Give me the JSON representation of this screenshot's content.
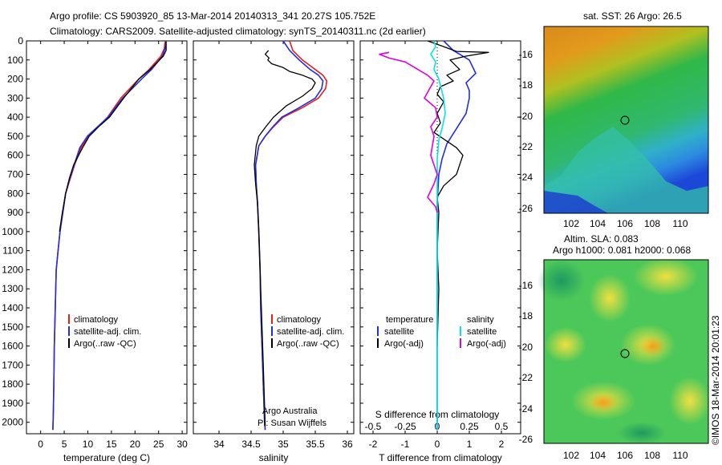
{
  "header": {
    "title_line1": "Argo profile: CS 5903920_85 13-Mar-2014 20140313_341 20.27S 105.752E",
    "title_line2": "Climatology: CARS2009. Satellite-adjusted climatology: synTS_20140311.nc (2d earlier)"
  },
  "colors": {
    "climatology": "#e8201a",
    "satellite": "#1f2ee8",
    "argo": "#000000",
    "satellite_salinity": "#00e5e5",
    "argo_salinity": "#e000e0"
  },
  "chart_data": [
    {
      "type": "line",
      "name": "temperature-profile",
      "xlabel": "temperature (deg C)",
      "xlim": [
        -3,
        31
      ],
      "xticks": [
        0,
        5,
        10,
        15,
        20,
        25,
        30
      ],
      "ylim": [
        2060,
        0
      ],
      "yticks": [
        0,
        100,
        200,
        300,
        400,
        500,
        600,
        700,
        800,
        900,
        1000,
        1100,
        1200,
        1300,
        1400,
        1500,
        1600,
        1700,
        1800,
        1900,
        2000
      ],
      "legend": [
        "climatology",
        "satellite-adj. clim.",
        "Argo(..raw -QC)"
      ],
      "series": [
        {
          "name": "climatology",
          "color": "climatology",
          "x": [
            26.4,
            26.2,
            25.5,
            23.0,
            20.8,
            17.0,
            14.2,
            12.2,
            10.2,
            8.6,
            7.2,
            6.3,
            5.3,
            4.7,
            4.1,
            3.7,
            3.3,
            3.1,
            2.9,
            2.8,
            2.7,
            2.6
          ],
          "y": [
            0,
            40,
            80,
            150,
            200,
            300,
            400,
            450,
            500,
            560,
            650,
            720,
            800,
            900,
            1000,
            1100,
            1200,
            1400,
            1600,
            1800,
            1950,
            2040
          ]
        },
        {
          "name": "satellite",
          "color": "satellite",
          "x": [
            26.6,
            26.4,
            25.8,
            23.5,
            21.4,
            17.4,
            14.3,
            12.1,
            9.9,
            8.3,
            7.1,
            6.2,
            5.3,
            4.7,
            4.1,
            3.7,
            3.3,
            3.1,
            2.9,
            2.8,
            2.7,
            2.6
          ],
          "y": [
            0,
            40,
            80,
            150,
            200,
            300,
            400,
            450,
            500,
            560,
            650,
            720,
            800,
            900,
            1000,
            1100,
            1200,
            1400,
            1600,
            1800,
            1950,
            2040
          ]
        },
        {
          "name": "argo",
          "color": "argo",
          "x": [
            26.6,
            26.6,
            26.0,
            23.2,
            20.8,
            17.6,
            14.6,
            12.3,
            10.3,
            8.9,
            7.0,
            6.1,
            5.3,
            4.6,
            4.0
          ],
          "y": [
            5,
            50,
            80,
            150,
            200,
            300,
            400,
            450,
            500,
            560,
            650,
            720,
            800,
            900,
            1000
          ]
        }
      ]
    },
    {
      "type": "line",
      "name": "salinity-profile",
      "xlabel": "salinity",
      "xlim": [
        33.6,
        36.1
      ],
      "xticks": [
        34,
        34.5,
        35,
        35.5,
        36
      ],
      "ylim": [
        2060,
        0
      ],
      "legend": [
        "climatology",
        "satellite-adj. clim.",
        "Argo(..raw -QC)"
      ],
      "annotations": [
        "Argo Australia",
        "PI: Susan Wijffels"
      ],
      "series": [
        {
          "name": "climatology",
          "color": "climatology",
          "x": [
            35.1,
            35.15,
            35.3,
            35.5,
            35.62,
            35.68,
            35.66,
            35.55,
            35.3,
            35.0,
            34.85,
            34.72,
            34.62,
            34.57,
            34.58,
            34.6,
            34.62,
            34.64,
            34.65,
            34.67,
            34.69,
            34.71,
            34.72
          ],
          "y": [
            0,
            50,
            100,
            150,
            180,
            210,
            250,
            300,
            350,
            400,
            450,
            500,
            550,
            650,
            750,
            850,
            1000,
            1200,
            1400,
            1600,
            1800,
            2000,
            2040
          ]
        },
        {
          "name": "satellite",
          "color": "satellite",
          "x": [
            35.0,
            35.1,
            35.25,
            35.42,
            35.55,
            35.62,
            35.6,
            35.5,
            35.25,
            34.98,
            34.84,
            34.72,
            34.62,
            34.57,
            34.58,
            34.6,
            34.62,
            34.64,
            34.65,
            34.67,
            34.69,
            34.71,
            34.72
          ],
          "y": [
            0,
            50,
            100,
            150,
            180,
            210,
            250,
            300,
            350,
            400,
            450,
            500,
            550,
            650,
            750,
            850,
            1000,
            1200,
            1400,
            1600,
            1800,
            2000,
            2040
          ]
        },
        {
          "name": "argo",
          "color": "argo",
          "x": [
            34.77,
            34.72,
            34.78,
            34.76,
            34.82,
            35.0,
            35.1,
            35.3,
            35.45,
            35.5,
            35.45,
            35.3,
            35.05,
            34.85,
            34.73,
            34.62,
            34.58,
            34.55,
            34.57,
            34.6,
            34.62,
            34.64,
            34.66,
            34.69,
            34.72
          ],
          "y": [
            50,
            70,
            90,
            100,
            120,
            140,
            160,
            180,
            200,
            220,
            250,
            290,
            340,
            400,
            450,
            500,
            550,
            650,
            750,
            850,
            1000,
            1200,
            1400,
            1700,
            2020
          ]
        }
      ]
    },
    {
      "type": "line",
      "name": "difference-profile",
      "xlabel": "T difference from climatology",
      "top_xlabel": "S difference from climatology",
      "xlim": [
        -2.4,
        2.6
      ],
      "xticks": [
        -2,
        -1,
        0,
        1,
        2
      ],
      "top_ticks": [
        -0.5,
        -0.25,
        0,
        0.25,
        0.5
      ],
      "ylim": [
        2060,
        0
      ],
      "legend_temperature": [
        "temperature",
        "satellite",
        "Argo(-adj)"
      ],
      "legend_salinity": [
        "salinity",
        "satellite",
        "Argo(-adj)"
      ],
      "series": [
        {
          "name": "temperature-satellite",
          "color": "satellite",
          "x": [
            0.2,
            0.5,
            1.0,
            1.2,
            0.9,
            1.0,
            1.0,
            0.9,
            0.6,
            0.3,
            0.15,
            0.05,
            0.0,
            0.0,
            0.0,
            0.0,
            0.0,
            0.0
          ],
          "y": [
            0,
            50,
            100,
            170,
            220,
            260,
            300,
            380,
            460,
            540,
            620,
            700,
            850,
            1000,
            1200,
            1500,
            1800,
            2040
          ]
        },
        {
          "name": "temperature-argo",
          "color": "argo",
          "x": [
            -0.3,
            0.2,
            0.6,
            1.6,
            0.9,
            0.4,
            0.7,
            0.3,
            0.5,
            0.1,
            0.0,
            0.2,
            0.0,
            0.1,
            -0.1,
            0.6,
            0.8,
            0.7,
            0.6,
            0.2,
            0.0,
            0.05,
            0.0,
            0.05,
            0.0
          ],
          "y": [
            0,
            30,
            55,
            60,
            80,
            100,
            150,
            180,
            210,
            240,
            280,
            320,
            380,
            430,
            480,
            560,
            600,
            650,
            700,
            760,
            820,
            900,
            1100,
            1300,
            1600
          ]
        },
        {
          "name": "salinity-satellite",
          "color": "satellite_salinity",
          "x": [
            -0.1,
            -0.05,
            -0.2,
            -0.05,
            -0.1,
            0.05,
            0.2,
            0.25,
            0.15,
            0.05,
            0.0,
            0.0,
            0.0,
            0.0
          ],
          "y": [
            0,
            30,
            70,
            110,
            150,
            200,
            300,
            380,
            460,
            520,
            620,
            800,
            1200,
            2040
          ]
        },
        {
          "name": "salinity-argo",
          "color": "argo_salinity",
          "x": [
            -1.5,
            -1.8,
            -1.5,
            -1.0,
            -0.6,
            -0.3,
            -0.1,
            -0.2,
            -0.4,
            -0.05,
            0.0,
            -0.2,
            -0.1,
            -0.2,
            -0.1,
            0.0,
            -0.1,
            -0.3,
            -0.05,
            0.0
          ],
          "y": [
            60,
            70,
            90,
            110,
            150,
            180,
            210,
            240,
            300,
            350,
            400,
            450,
            500,
            600,
            650,
            700,
            750,
            820,
            870,
            900
          ]
        }
      ]
    }
  ],
  "maps": {
    "sst": {
      "title": "sat. SST: 26 Argo: 26.5",
      "xticks": [
        "102",
        "104",
        "106",
        "108",
        "110"
      ],
      "yticks": [
        "-16",
        "-18",
        "-20",
        "-22",
        "-24",
        "-26"
      ]
    },
    "sla": {
      "title_line1": "Altim. SLA: 0.083",
      "title_line2": "Argo h1000: 0.081 h2000: 0.068",
      "xticks": [
        "102",
        "104",
        "106",
        "108",
        "110"
      ],
      "yticks": [
        "-16",
        "-18",
        "-20",
        "-22",
        "-24",
        "-26"
      ]
    }
  },
  "footer_stamp": "©IMOS 18-Mar-2014 20:01:23"
}
